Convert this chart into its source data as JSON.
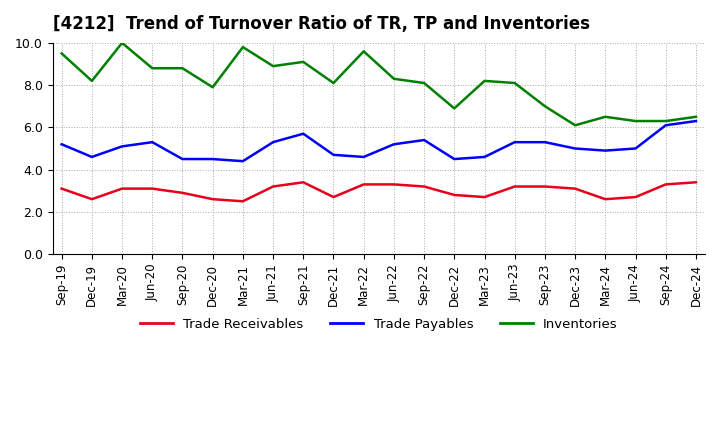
{
  "title": "[4212]  Trend of Turnover Ratio of TR, TP and Inventories",
  "x_labels": [
    "Sep-19",
    "Dec-19",
    "Mar-20",
    "Jun-20",
    "Sep-20",
    "Dec-20",
    "Mar-21",
    "Jun-21",
    "Sep-21",
    "Dec-21",
    "Mar-22",
    "Jun-22",
    "Sep-22",
    "Dec-22",
    "Mar-23",
    "Jun-23",
    "Sep-23",
    "Dec-23",
    "Mar-24",
    "Jun-24",
    "Sep-24",
    "Dec-24"
  ],
  "trade_receivables": [
    3.1,
    2.6,
    3.1,
    3.1,
    2.9,
    2.6,
    2.5,
    3.2,
    3.4,
    2.7,
    3.3,
    3.3,
    3.2,
    2.8,
    2.7,
    3.2,
    3.2,
    3.1,
    2.6,
    2.7,
    3.3,
    3.4
  ],
  "trade_payables": [
    5.2,
    4.6,
    5.1,
    5.3,
    4.5,
    4.5,
    4.4,
    5.3,
    5.7,
    4.7,
    4.6,
    5.2,
    5.4,
    4.5,
    4.6,
    5.3,
    5.3,
    5.0,
    4.9,
    5.0,
    6.1,
    6.3
  ],
  "inventories": [
    9.5,
    8.2,
    10.0,
    8.8,
    8.8,
    7.9,
    9.8,
    8.9,
    9.1,
    8.1,
    9.6,
    8.3,
    8.1,
    6.9,
    8.2,
    8.1,
    7.0,
    6.1,
    6.5,
    6.3,
    6.3,
    6.5
  ],
  "ylim": [
    0.0,
    10.0
  ],
  "yticks": [
    0.0,
    2.0,
    4.0,
    6.0,
    8.0,
    10.0
  ],
  "color_tr": "#e8001c",
  "color_tp": "#0000ff",
  "color_inv": "#008000",
  "legend_labels": [
    "Trade Receivables",
    "Trade Payables",
    "Inventories"
  ],
  "bg_color": "#ffffff",
  "plot_bg_color": "#ffffff"
}
